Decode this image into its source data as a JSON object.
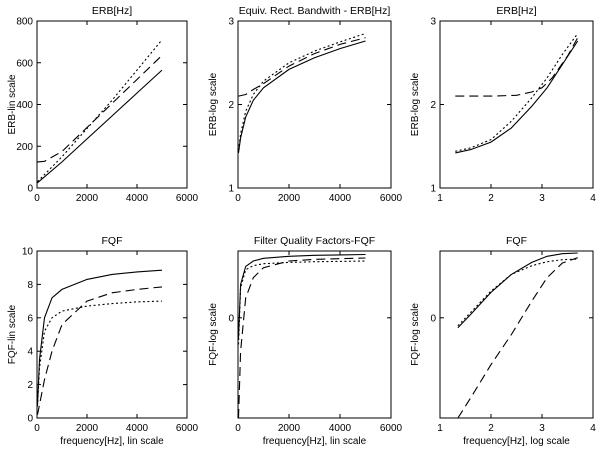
{
  "figure": {
    "panels": [
      {
        "title": "ERB[Hz]",
        "xlabel": "",
        "ylabel": "ERB-lin scale"
      },
      {
        "title": "Equiv. Rect. Bandwith - ERB[Hz]",
        "xlabel": "",
        "ylabel": "ERB-log scale"
      },
      {
        "title": "ERB[Hz]",
        "xlabel": "",
        "ylabel": "ERB-log scale"
      },
      {
        "title": "FQF",
        "xlabel": "frequency[Hz], lin scale",
        "ylabel": "FQF-lin scale"
      },
      {
        "title": "Filter Quality Factors-FQF",
        "xlabel": "frequency[Hz], lin scale",
        "ylabel": "FQF-log scale"
      },
      {
        "title": "FQF",
        "xlabel": "frequency[Hz], log scale",
        "ylabel": "FQF-log scale"
      }
    ]
  },
  "chart_data": [
    {
      "type": "line",
      "title": "ERB[Hz]",
      "xlabel": "",
      "ylabel": "ERB-lin scale",
      "xlim": [
        0,
        6000
      ],
      "ylim": [
        0,
        800
      ],
      "xticks": [
        0,
        2000,
        4000,
        6000
      ],
      "xticklabels": [
        "0",
        "2000",
        "4000",
        "6000"
      ],
      "yticks": [
        0,
        200,
        400,
        600,
        800
      ],
      "yticklabels": [
        "0",
        "200",
        "400",
        "600",
        "800"
      ],
      "series": [
        {
          "style": "solid",
          "x": [
            20,
            1000,
            2000,
            3000,
            4000,
            5000
          ],
          "y": [
            25,
            125,
            235,
            345,
            455,
            565
          ]
        },
        {
          "style": "dashed",
          "x": [
            20,
            300,
            1000,
            2000,
            3000,
            4000,
            5000
          ],
          "y": [
            125,
            128,
            175,
            290,
            405,
            520,
            635
          ]
        },
        {
          "style": "dotted",
          "x": [
            20,
            1000,
            2000,
            3000,
            4000,
            5000
          ],
          "y": [
            30,
            150,
            285,
            420,
            565,
            710
          ]
        }
      ]
    },
    {
      "type": "line",
      "title": "Equiv. Rect. Bandwith - ERB[Hz]",
      "xlabel": "",
      "ylabel": "ERB-log scale",
      "xlim": [
        0,
        6000
      ],
      "ylim": [
        1,
        3
      ],
      "xticks": [
        0,
        2000,
        4000,
        6000
      ],
      "xticklabels": [
        "0",
        "2000",
        "4000",
        "6000"
      ],
      "yticks": [
        1,
        2,
        3
      ],
      "yticklabels": [
        "1",
        "2",
        "3"
      ],
      "series": [
        {
          "style": "solid",
          "x": [
            20,
            100,
            300,
            600,
            1000,
            2000,
            3000,
            4000,
            5000
          ],
          "y": [
            1.42,
            1.6,
            1.85,
            2.05,
            2.2,
            2.42,
            2.56,
            2.67,
            2.76
          ]
        },
        {
          "style": "dashed",
          "x": [
            20,
            300,
            600,
            1000,
            2000,
            3000,
            4000,
            5000
          ],
          "y": [
            2.1,
            2.12,
            2.18,
            2.25,
            2.46,
            2.61,
            2.72,
            2.8
          ]
        },
        {
          "style": "dotted",
          "x": [
            20,
            100,
            300,
            600,
            1000,
            2000,
            3000,
            4000,
            5000
          ],
          "y": [
            1.45,
            1.65,
            1.92,
            2.12,
            2.28,
            2.5,
            2.64,
            2.75,
            2.85
          ]
        }
      ]
    },
    {
      "type": "line",
      "title": "ERB[Hz]",
      "xlabel": "",
      "ylabel": "ERB-log scale",
      "xlim": [
        1,
        4
      ],
      "ylim": [
        1,
        3
      ],
      "xticks": [
        1,
        2,
        3,
        4
      ],
      "xticklabels": [
        "1",
        "2",
        "3",
        "4"
      ],
      "yticks": [
        1,
        2,
        3
      ],
      "yticklabels": [
        "1",
        "2",
        "3"
      ],
      "series": [
        {
          "style": "solid",
          "x": [
            1.3,
            1.6,
            2.0,
            2.4,
            2.8,
            3.1,
            3.4,
            3.7
          ],
          "y": [
            1.42,
            1.46,
            1.55,
            1.72,
            1.98,
            2.2,
            2.48,
            2.76
          ]
        },
        {
          "style": "dashed",
          "x": [
            1.3,
            2.0,
            2.5,
            2.8,
            3.0,
            3.2,
            3.5,
            3.7
          ],
          "y": [
            2.1,
            2.1,
            2.11,
            2.15,
            2.2,
            2.32,
            2.58,
            2.8
          ]
        },
        {
          "style": "dotted",
          "x": [
            1.3,
            1.6,
            2.0,
            2.4,
            2.8,
            3.1,
            3.4,
            3.7
          ],
          "y": [
            1.44,
            1.48,
            1.58,
            1.8,
            2.08,
            2.32,
            2.6,
            2.85
          ]
        }
      ]
    },
    {
      "type": "line",
      "title": "FQF",
      "xlabel": "frequency[Hz], lin scale",
      "ylabel": "FQF-lin scale",
      "xlim": [
        0,
        6000
      ],
      "ylim": [
        0,
        10
      ],
      "xticks": [
        0,
        2000,
        4000,
        6000
      ],
      "xticklabels": [
        "0",
        "2000",
        "4000",
        "6000"
      ],
      "yticks": [
        0,
        2,
        4,
        6,
        8,
        10
      ],
      "yticklabels": [
        "0",
        "2",
        "4",
        "6",
        "8",
        "10"
      ],
      "series": [
        {
          "style": "solid",
          "x": [
            20,
            100,
            300,
            600,
            1000,
            2000,
            3000,
            4000,
            5000
          ],
          "y": [
            0.8,
            3.5,
            6.0,
            7.2,
            7.7,
            8.3,
            8.6,
            8.75,
            8.85
          ]
        },
        {
          "style": "dashed",
          "x": [
            20,
            300,
            600,
            1000,
            2000,
            3000,
            4000,
            5000
          ],
          "y": [
            0.2,
            2.3,
            4.0,
            5.6,
            7.0,
            7.5,
            7.7,
            7.85
          ]
        },
        {
          "style": "dotted",
          "x": [
            20,
            100,
            300,
            600,
            1000,
            2000,
            3000,
            4000,
            5000
          ],
          "y": [
            0.7,
            3.0,
            5.2,
            6.0,
            6.4,
            6.7,
            6.85,
            6.95,
            7.0
          ]
        }
      ]
    },
    {
      "type": "line",
      "title": "Filter Quality Factors-FQF",
      "xlabel": "frequency[Hz], lin scale",
      "ylabel": "FQF-log scale",
      "xlim": [
        0,
        6000
      ],
      "ylim": [
        -1.5,
        1
      ],
      "xticks": [
        0,
        2000,
        4000,
        6000
      ],
      "xticklabels": [
        "0",
        "2000",
        "4000",
        "6000"
      ],
      "yticks": [
        0
      ],
      "yticklabels": [
        "0"
      ],
      "series": [
        {
          "style": "solid",
          "x": [
            20,
            100,
            300,
            600,
            1000,
            2000,
            3000,
            4000,
            5000
          ],
          "y": [
            -0.3,
            0.5,
            0.77,
            0.85,
            0.89,
            0.92,
            0.935,
            0.942,
            0.947
          ]
        },
        {
          "style": "dashed",
          "x": [
            20,
            100,
            300,
            600,
            1000,
            2000,
            3000,
            4000,
            5000
          ],
          "y": [
            -1.5,
            -0.5,
            0.3,
            0.6,
            0.75,
            0.85,
            0.875,
            0.885,
            0.895
          ]
        },
        {
          "style": "dotted",
          "x": [
            20,
            100,
            300,
            600,
            1000,
            2000,
            3000,
            4000,
            5000
          ],
          "y": [
            -0.4,
            0.45,
            0.72,
            0.78,
            0.81,
            0.83,
            0.84,
            0.845,
            0.85
          ]
        }
      ]
    },
    {
      "type": "line",
      "title": "FQF",
      "xlabel": "frequency[Hz], log scale",
      "ylabel": "FQF-log scale",
      "xlim": [
        1,
        4
      ],
      "ylim": [
        -1.5,
        1
      ],
      "xticks": [
        1,
        2,
        3,
        4
      ],
      "xticklabels": [
        "1",
        "2",
        "3",
        "4"
      ],
      "yticks": [
        0
      ],
      "yticklabels": [
        "0"
      ],
      "series": [
        {
          "style": "solid",
          "x": [
            1.35,
            1.6,
            2.0,
            2.4,
            2.8,
            3.1,
            3.4,
            3.7
          ],
          "y": [
            -0.15,
            0.05,
            0.38,
            0.65,
            0.83,
            0.92,
            0.96,
            0.97
          ]
        },
        {
          "style": "dashed",
          "x": [
            1.35,
            1.6,
            2.0,
            2.4,
            2.8,
            3.1,
            3.4,
            3.7
          ],
          "y": [
            -1.5,
            -1.2,
            -0.7,
            -0.25,
            0.25,
            0.6,
            0.82,
            0.9
          ]
        },
        {
          "style": "dotted",
          "x": [
            1.35,
            1.6,
            2.0,
            2.4,
            2.8,
            3.1,
            3.4,
            3.7
          ],
          "y": [
            -0.12,
            0.08,
            0.4,
            0.65,
            0.78,
            0.84,
            0.87,
            0.88
          ]
        }
      ]
    }
  ]
}
